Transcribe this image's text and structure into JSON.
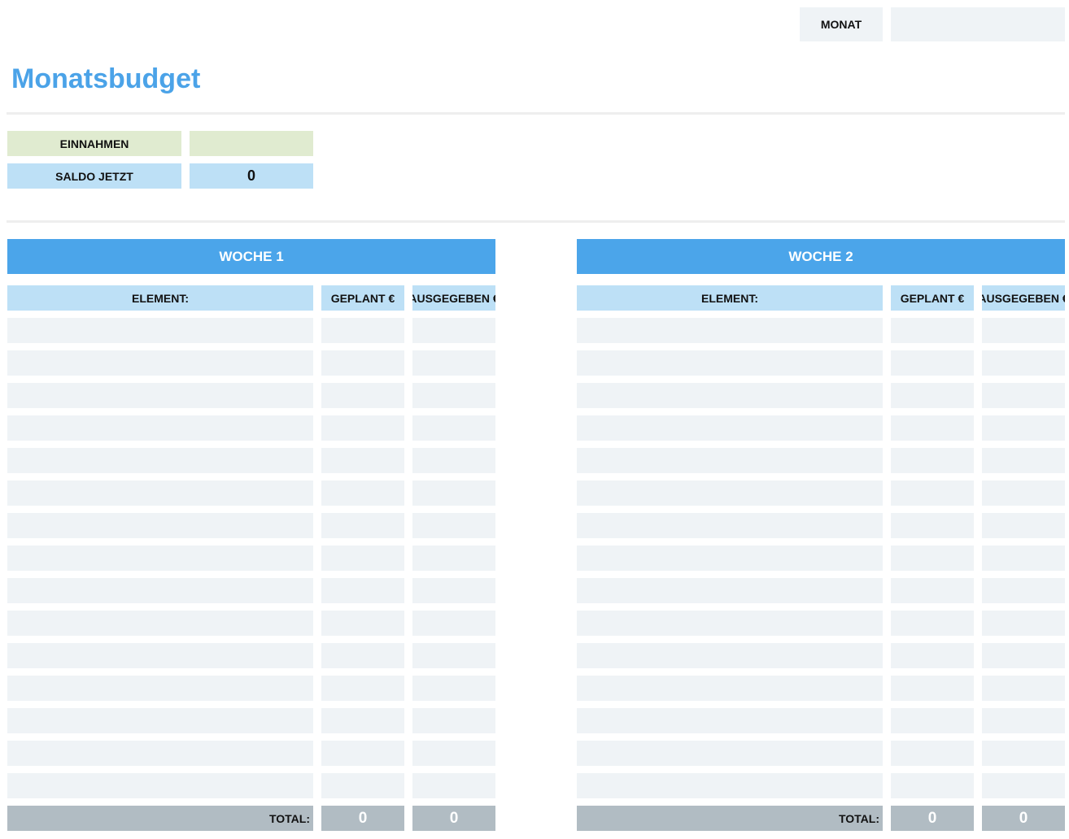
{
  "header": {
    "month_label": "MONAT",
    "title": "Monatsbudget"
  },
  "summary": {
    "income_label": "EINNAHMEN",
    "balance_label": "SALDO JETZT",
    "balance_value": 0
  },
  "weeks": [
    {
      "title": "WOCHE 1",
      "columns": [
        "ELEMENT:",
        "GEPLANT €",
        "AUSGEGEBEN €"
      ],
      "total_label": "TOTAL:",
      "totals": [
        0,
        0
      ]
    },
    {
      "title": "WOCHE 2",
      "columns": [
        "ELEMENT:",
        "GEPLANT €",
        "AUSGEGEBEN €"
      ],
      "total_label": "TOTAL:",
      "totals": [
        0,
        0
      ]
    }
  ]
}
